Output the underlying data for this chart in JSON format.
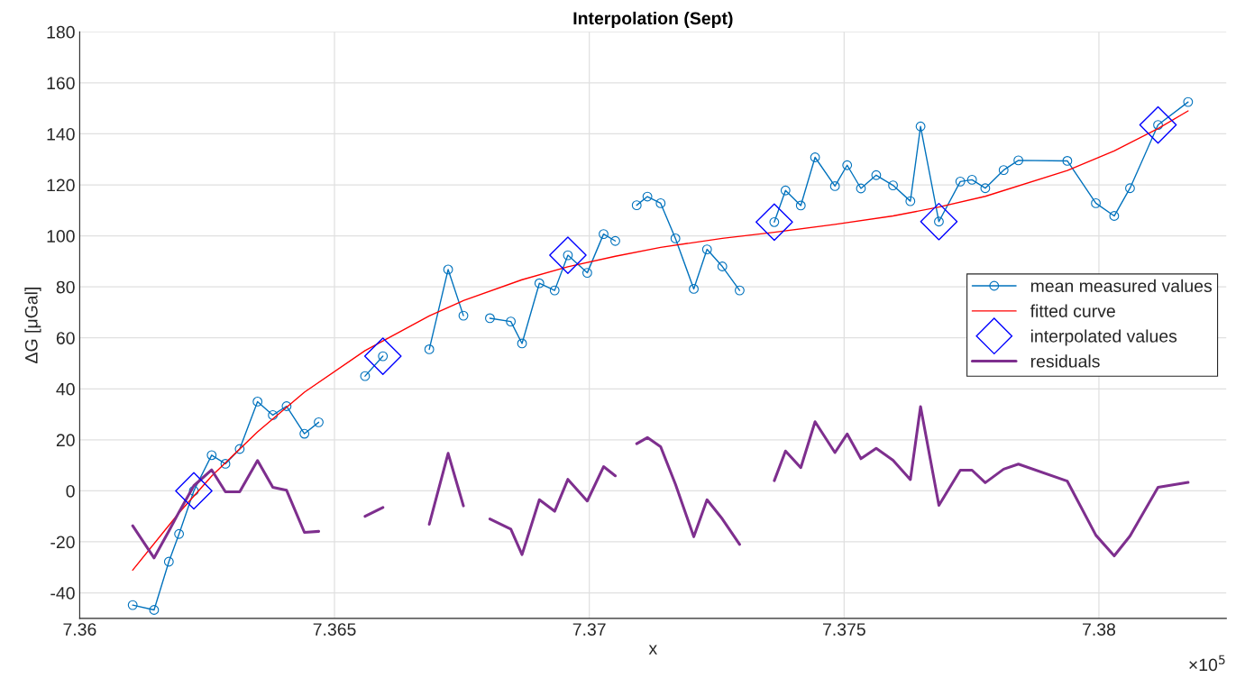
{
  "chart_data": {
    "type": "line",
    "title": "Interpolation (Sept)",
    "xlabel": "x",
    "ylabel": "ΔG [μGal]",
    "series": [
      {
        "name": "mean measured values",
        "color": "#0072bd",
        "marker": "circle",
        "line_style": "solid",
        "x": [
          7.36104,
          7.36146,
          7.36175,
          7.36195,
          7.36224,
          7.36259,
          7.36286,
          7.36314,
          7.36349,
          7.36379,
          7.36406,
          7.36441,
          7.36469,
          7.36515,
          7.3656,
          7.36595,
          7.3664,
          7.36686,
          7.36723,
          7.36753,
          7.3678,
          7.36805,
          7.36846,
          7.36868,
          7.36902,
          7.36932,
          7.36958,
          7.36996,
          7.37028,
          7.37051,
          7.3707,
          7.37093,
          7.37114,
          7.3714,
          7.37169,
          7.37205,
          7.37231,
          7.37261,
          7.37295,
          7.3733,
          7.37363,
          7.37385,
          7.37415,
          7.37443,
          7.37482,
          7.37506,
          7.37533,
          7.37563,
          7.37596,
          7.3763,
          7.3765,
          7.37686,
          7.37728,
          7.37751,
          7.37777,
          7.37813,
          7.37842,
          7.37938,
          7.37994,
          7.3803,
          7.38061,
          7.38116,
          7.38175
        ],
        "values": [
          -44.8,
          -46.7,
          -27.8,
          -16.9,
          0,
          14,
          10.6,
          16.4,
          35,
          29.7,
          33.2,
          22.4,
          26.9,
          null,
          45,
          52.8,
          null,
          55.5,
          86.8,
          68.7,
          null,
          67.7,
          66.4,
          57.8,
          81.4,
          78.6,
          92.4,
          85.5,
          100.7,
          98,
          null,
          112,
          115.4,
          112.8,
          99,
          79.2,
          94.7,
          88,
          78.6,
          null,
          105.4,
          117.8,
          111.9,
          130.8,
          119.5,
          127.7,
          118.6,
          123.8,
          119.8,
          113.6,
          142.9,
          105.6,
          121.3,
          122,
          118.7,
          125.8,
          129.6,
          129.4,
          112.8,
          107.8,
          118.7,
          143.5,
          152.5
        ]
      },
      {
        "name": "fitted curve",
        "color": "#ff0000",
        "line_style": "solid",
        "x": [
          7.36104,
          7.36195,
          7.36259,
          7.36349,
          7.36441,
          7.3656,
          7.36686,
          7.36753,
          7.36868,
          7.36958,
          7.37051,
          7.3714,
          7.37261,
          7.37363,
          7.37482,
          7.37596,
          7.37686,
          7.37777,
          7.37938,
          7.3803,
          7.38116,
          7.38175
        ],
        "values": [
          -31.1,
          -8.6,
          5.8,
          23.1,
          38.7,
          55,
          68.6,
          74.6,
          82.8,
          87.9,
          92,
          95.5,
          99,
          101.4,
          104.5,
          107.8,
          111.3,
          115.5,
          125.6,
          133.3,
          142.1,
          149
        ]
      },
      {
        "name": "interpolated values",
        "type": "scatter",
        "color": "#0000ff",
        "marker": "diamond",
        "x": [
          7.36224,
          7.36595,
          7.36958,
          7.37363,
          7.37686,
          7.38116
        ],
        "values": [
          0,
          52.8,
          92.4,
          105.4,
          105.6,
          143.5
        ]
      },
      {
        "name": "residuals",
        "color": "#7e2f8e",
        "line_style": "solid",
        "x": [
          7.36104,
          7.36146,
          7.36175,
          7.36195,
          7.36224,
          7.36259,
          7.36286,
          7.36314,
          7.36349,
          7.36379,
          7.36406,
          7.36441,
          7.36469,
          7.36515,
          7.3656,
          7.36595,
          7.3664,
          7.36686,
          7.36723,
          7.36753,
          7.3678,
          7.36805,
          7.36846,
          7.36868,
          7.36902,
          7.36932,
          7.36958,
          7.36996,
          7.37028,
          7.37051,
          7.3707,
          7.37093,
          7.37114,
          7.3714,
          7.37169,
          7.37205,
          7.37231,
          7.37261,
          7.37295,
          7.3733,
          7.37363,
          7.37385,
          7.37415,
          7.37443,
          7.37482,
          7.37506,
          7.37533,
          7.37563,
          7.37596,
          7.3763,
          7.3765,
          7.37686,
          7.37728,
          7.37751,
          7.37777,
          7.37813,
          7.37842,
          7.37938,
          7.37994,
          7.3803,
          7.38061,
          7.38116,
          7.38175
        ],
        "values": [
          -13.7,
          -26.3,
          -15.8,
          -8.3,
          2,
          8.2,
          -0.4,
          -0.4,
          11.9,
          1.4,
          0.2,
          -16.3,
          -15.9,
          null,
          -10,
          -6.5,
          null,
          -13.1,
          14.7,
          -5.9,
          null,
          -11,
          -15,
          -25,
          -3.5,
          -8,
          4.5,
          -4,
          9.5,
          5.9,
          null,
          18.5,
          20.9,
          17.3,
          2.6,
          -18,
          -3.5,
          -11,
          -21,
          null,
          4,
          15.6,
          9.1,
          27.1,
          15,
          22.3,
          12.6,
          16.7,
          12,
          4.4,
          33,
          -5.7,
          8.1,
          8.1,
          3.2,
          8.5,
          10.5,
          3.8,
          -17.4,
          -25.5,
          -17.7,
          1.4,
          3.3
        ]
      }
    ],
    "xlim": [
      7.36,
      7.3825
    ],
    "xticks": [
      7.36,
      7.365,
      7.37,
      7.375,
      7.38
    ],
    "ylim": [
      -50,
      180
    ],
    "yticks": [
      -40,
      -20,
      0,
      20,
      40,
      60,
      80,
      100,
      120,
      140,
      160,
      180
    ],
    "grid": true,
    "legend": "right",
    "annotations": [
      "×10$^{5}$"
    ]
  }
}
